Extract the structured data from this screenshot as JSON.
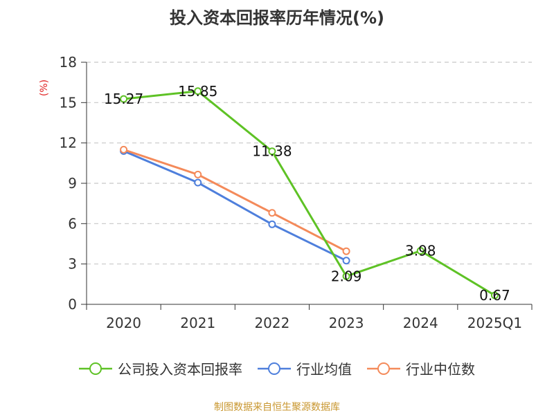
{
  "chart_data": {
    "type": "line",
    "title": "投入资本回报率历年情况(%)",
    "ylabel": "(%)",
    "categories": [
      "2020",
      "2021",
      "2022",
      "2023",
      "2024",
      "2025Q1"
    ],
    "yticks": [
      0,
      3,
      6,
      9,
      12,
      15,
      18
    ],
    "ylim": [
      0,
      18
    ],
    "grid": true,
    "legend_position": "bottom",
    "series": [
      {
        "name": "公司投入资本回报率",
        "color": "#5ec225",
        "values": [
          15.27,
          15.85,
          11.38,
          2.09,
          3.98,
          0.67
        ],
        "labels": [
          "15.27",
          "15.85",
          "11.38",
          "2.09",
          "3.98",
          "0.67"
        ]
      },
      {
        "name": "行业均值",
        "color": "#4e7fdc",
        "values": [
          11.4,
          9.05,
          5.95,
          3.25,
          null,
          null
        ]
      },
      {
        "name": "行业中位数",
        "color": "#f48a5a",
        "values": [
          11.5,
          9.65,
          6.8,
          3.95,
          null,
          null
        ]
      }
    ]
  },
  "source": "制图数据来自恒生聚源数据库"
}
